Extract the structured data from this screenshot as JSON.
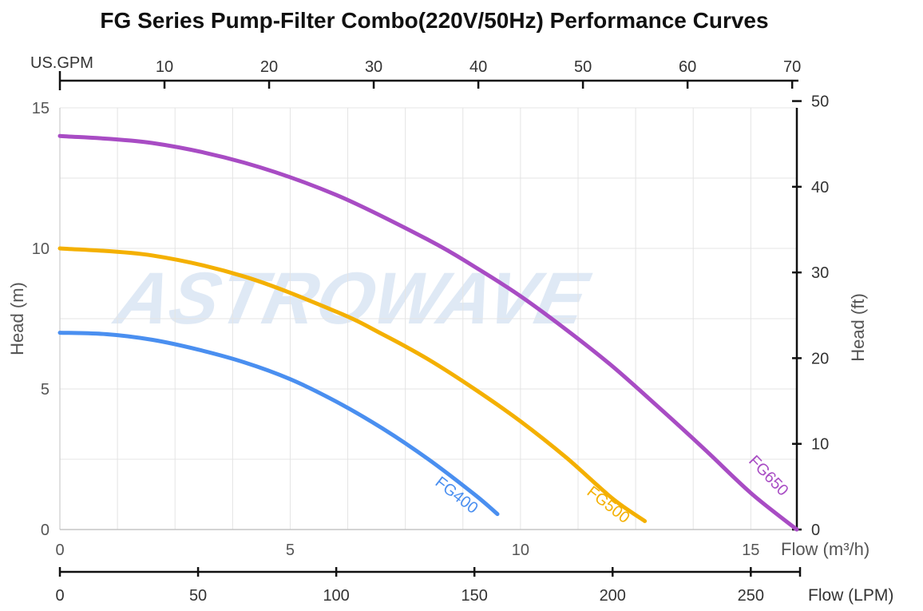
{
  "chart_data": {
    "type": "line",
    "title": "FG Series Pump-Filter Combo(220V/50Hz) Performance Curves",
    "watermark": "ASTROWAVE",
    "xlabel": "Flow (m³/h)",
    "xlim": [
      0,
      16
    ],
    "xticks": [
      0,
      5,
      10,
      15
    ],
    "ylabel": "Head (m)",
    "ylim": [
      0,
      15
    ],
    "yticks": [
      0,
      5,
      10,
      15
    ],
    "x2label": "US.GPM",
    "x2ticks": [
      10,
      20,
      30,
      40,
      50,
      60,
      70
    ],
    "x3label": "Flow (LPM)",
    "x3ticks": [
      0,
      50,
      100,
      150,
      200,
      250
    ],
    "y2label": "Head (ft)",
    "y2ticks": [
      0,
      10,
      20,
      30,
      40,
      50
    ],
    "grid": true,
    "series": [
      {
        "name": "FG400",
        "color": "#4a8ff0",
        "x": [
          0,
          1,
          2,
          3,
          4,
          5,
          6,
          7,
          8,
          9,
          9.5
        ],
        "y": [
          7.0,
          6.95,
          6.75,
          6.4,
          5.95,
          5.35,
          4.55,
          3.6,
          2.5,
          1.25,
          0.55
        ]
      },
      {
        "name": "FG500",
        "color": "#f4b000",
        "x": [
          0,
          2,
          4,
          6,
          7,
          8,
          9,
          10,
          11,
          12,
          12.7
        ],
        "y": [
          10.0,
          9.75,
          9.0,
          7.75,
          6.95,
          6.05,
          5.0,
          3.85,
          2.55,
          1.1,
          0.3
        ]
      },
      {
        "name": "FG650",
        "color": "#a84cc4",
        "x": [
          0,
          2,
          4,
          6,
          8,
          9,
          10,
          11,
          12,
          13,
          14,
          15,
          16
        ],
        "y": [
          14.0,
          13.75,
          13.05,
          11.9,
          10.3,
          9.35,
          8.3,
          7.1,
          5.8,
          4.35,
          2.85,
          1.3,
          0.0
        ]
      }
    ]
  }
}
